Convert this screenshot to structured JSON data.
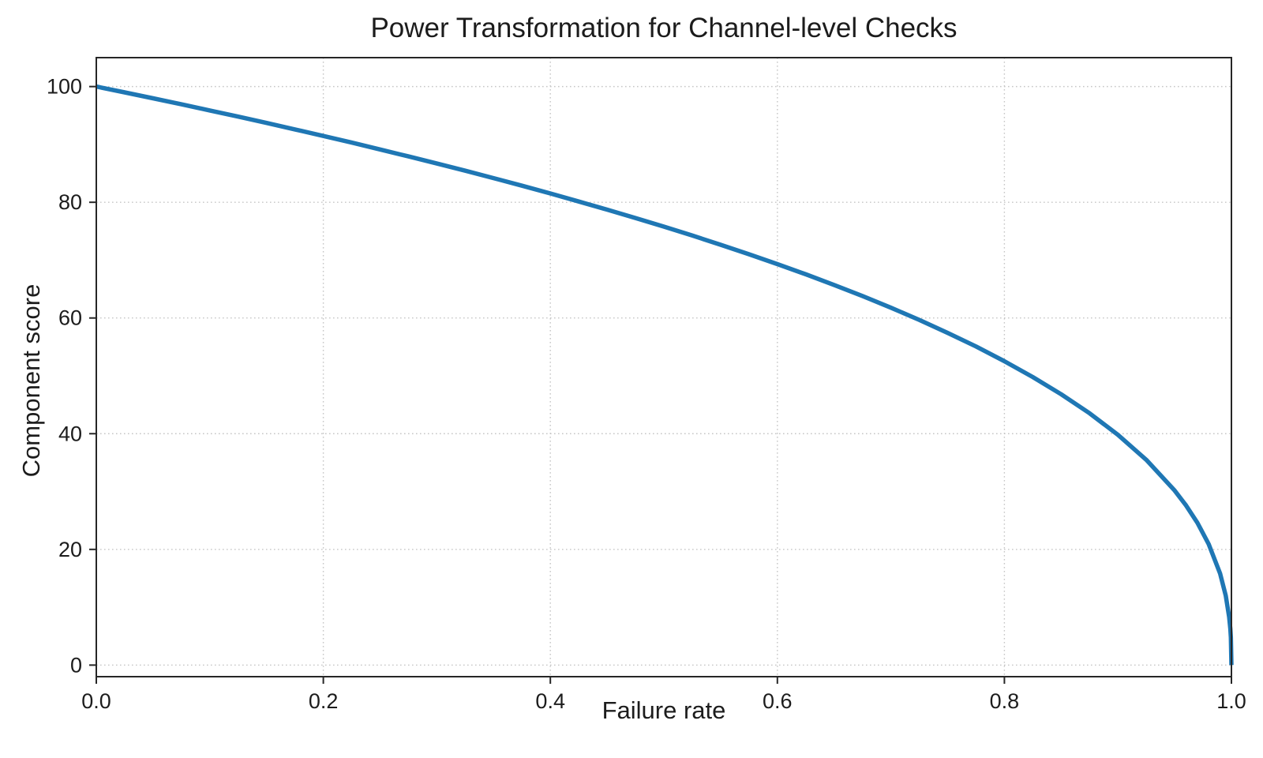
{
  "chart_data": {
    "type": "line",
    "title": "Power Transformation for Channel-level Checks",
    "xlabel": "Failure rate",
    "ylabel": "Component score",
    "xlim": [
      0.0,
      1.0
    ],
    "ylim": [
      -2,
      105
    ],
    "xticks": {
      "values": [
        0.0,
        0.2,
        0.4,
        0.6,
        0.8,
        1.0
      ],
      "labels": [
        "0.0",
        "0.2",
        "0.4",
        "0.6",
        "0.8",
        "1.0"
      ]
    },
    "yticks": {
      "values": [
        0,
        20,
        40,
        60,
        80,
        100
      ],
      "labels": [
        "0",
        "20",
        "40",
        "60",
        "80",
        "100"
      ]
    },
    "grid": {
      "visible": true,
      "style": "dotted",
      "color": "#c6c6c6"
    },
    "legend": {
      "visible": false
    },
    "spine_color": "#262626",
    "series": [
      {
        "name": "component-score-curve",
        "color": "#1f77b4",
        "line_width": 5.5,
        "formula": "y = 100 * (1 - x)^0.4",
        "x": [
          0,
          0.025,
          0.05,
          0.075,
          0.1,
          0.125,
          0.15,
          0.175,
          0.2,
          0.225,
          0.25,
          0.275,
          0.3,
          0.325,
          0.35,
          0.375,
          0.4,
          0.425,
          0.45,
          0.475,
          0.5,
          0.525,
          0.55,
          0.575,
          0.6,
          0.625,
          0.65,
          0.675,
          0.7,
          0.725,
          0.75,
          0.775,
          0.8,
          0.825,
          0.85,
          0.875,
          0.9,
          0.925,
          0.95,
          0.96,
          0.97,
          0.98,
          0.99,
          0.995,
          0.998,
          0.999,
          0.9995,
          1.0
        ],
        "y": [
          100,
          98.99,
          97.97,
          96.93,
          95.87,
          94.8,
          93.71,
          92.59,
          91.46,
          90.31,
          89.13,
          87.93,
          86.7,
          85.45,
          84.17,
          82.86,
          81.52,
          80.14,
          78.73,
          77.28,
          75.79,
          74.25,
          72.66,
          71.02,
          69.31,
          67.55,
          65.71,
          63.79,
          61.78,
          59.67,
          57.43,
          55.07,
          52.53,
          49.8,
          46.82,
          43.53,
          39.81,
          35.48,
          30.17,
          27.6,
          24.6,
          20.91,
          15.85,
          12.01,
          8.33,
          6.31,
          4.78,
          0
        ]
      }
    ]
  }
}
